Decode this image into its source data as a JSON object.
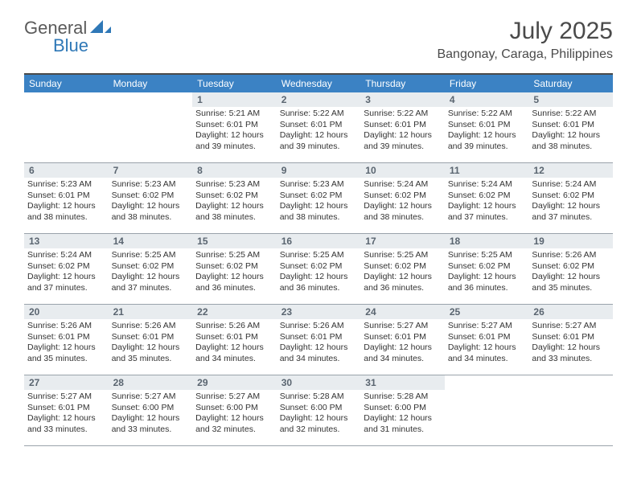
{
  "brand": {
    "part1": "General",
    "part2": "Blue"
  },
  "title": "July 2025",
  "location": "Bangonay, Caraga, Philippines",
  "colors": {
    "header_bar": "#3b82c4",
    "day_strip": "#e8ecef",
    "border": "#9aa3ab",
    "logo_blue": "#2f78b7",
    "text": "#333333"
  },
  "weekdays": [
    "Sunday",
    "Monday",
    "Tuesday",
    "Wednesday",
    "Thursday",
    "Friday",
    "Saturday"
  ],
  "first_weekday_index": 2,
  "days": [
    {
      "n": 1,
      "sunrise": "5:21 AM",
      "sunset": "6:01 PM",
      "daylight": "12 hours and 39 minutes."
    },
    {
      "n": 2,
      "sunrise": "5:22 AM",
      "sunset": "6:01 PM",
      "daylight": "12 hours and 39 minutes."
    },
    {
      "n": 3,
      "sunrise": "5:22 AM",
      "sunset": "6:01 PM",
      "daylight": "12 hours and 39 minutes."
    },
    {
      "n": 4,
      "sunrise": "5:22 AM",
      "sunset": "6:01 PM",
      "daylight": "12 hours and 39 minutes."
    },
    {
      "n": 5,
      "sunrise": "5:22 AM",
      "sunset": "6:01 PM",
      "daylight": "12 hours and 38 minutes."
    },
    {
      "n": 6,
      "sunrise": "5:23 AM",
      "sunset": "6:01 PM",
      "daylight": "12 hours and 38 minutes."
    },
    {
      "n": 7,
      "sunrise": "5:23 AM",
      "sunset": "6:02 PM",
      "daylight": "12 hours and 38 minutes."
    },
    {
      "n": 8,
      "sunrise": "5:23 AM",
      "sunset": "6:02 PM",
      "daylight": "12 hours and 38 minutes."
    },
    {
      "n": 9,
      "sunrise": "5:23 AM",
      "sunset": "6:02 PM",
      "daylight": "12 hours and 38 minutes."
    },
    {
      "n": 10,
      "sunrise": "5:24 AM",
      "sunset": "6:02 PM",
      "daylight": "12 hours and 38 minutes."
    },
    {
      "n": 11,
      "sunrise": "5:24 AM",
      "sunset": "6:02 PM",
      "daylight": "12 hours and 37 minutes."
    },
    {
      "n": 12,
      "sunrise": "5:24 AM",
      "sunset": "6:02 PM",
      "daylight": "12 hours and 37 minutes."
    },
    {
      "n": 13,
      "sunrise": "5:24 AM",
      "sunset": "6:02 PM",
      "daylight": "12 hours and 37 minutes."
    },
    {
      "n": 14,
      "sunrise": "5:25 AM",
      "sunset": "6:02 PM",
      "daylight": "12 hours and 37 minutes."
    },
    {
      "n": 15,
      "sunrise": "5:25 AM",
      "sunset": "6:02 PM",
      "daylight": "12 hours and 36 minutes."
    },
    {
      "n": 16,
      "sunrise": "5:25 AM",
      "sunset": "6:02 PM",
      "daylight": "12 hours and 36 minutes."
    },
    {
      "n": 17,
      "sunrise": "5:25 AM",
      "sunset": "6:02 PM",
      "daylight": "12 hours and 36 minutes."
    },
    {
      "n": 18,
      "sunrise": "5:25 AM",
      "sunset": "6:02 PM",
      "daylight": "12 hours and 36 minutes."
    },
    {
      "n": 19,
      "sunrise": "5:26 AM",
      "sunset": "6:02 PM",
      "daylight": "12 hours and 35 minutes."
    },
    {
      "n": 20,
      "sunrise": "5:26 AM",
      "sunset": "6:01 PM",
      "daylight": "12 hours and 35 minutes."
    },
    {
      "n": 21,
      "sunrise": "5:26 AM",
      "sunset": "6:01 PM",
      "daylight": "12 hours and 35 minutes."
    },
    {
      "n": 22,
      "sunrise": "5:26 AM",
      "sunset": "6:01 PM",
      "daylight": "12 hours and 34 minutes."
    },
    {
      "n": 23,
      "sunrise": "5:26 AM",
      "sunset": "6:01 PM",
      "daylight": "12 hours and 34 minutes."
    },
    {
      "n": 24,
      "sunrise": "5:27 AM",
      "sunset": "6:01 PM",
      "daylight": "12 hours and 34 minutes."
    },
    {
      "n": 25,
      "sunrise": "5:27 AM",
      "sunset": "6:01 PM",
      "daylight": "12 hours and 34 minutes."
    },
    {
      "n": 26,
      "sunrise": "5:27 AM",
      "sunset": "6:01 PM",
      "daylight": "12 hours and 33 minutes."
    },
    {
      "n": 27,
      "sunrise": "5:27 AM",
      "sunset": "6:01 PM",
      "daylight": "12 hours and 33 minutes."
    },
    {
      "n": 28,
      "sunrise": "5:27 AM",
      "sunset": "6:00 PM",
      "daylight": "12 hours and 33 minutes."
    },
    {
      "n": 29,
      "sunrise": "5:27 AM",
      "sunset": "6:00 PM",
      "daylight": "12 hours and 32 minutes."
    },
    {
      "n": 30,
      "sunrise": "5:28 AM",
      "sunset": "6:00 PM",
      "daylight": "12 hours and 32 minutes."
    },
    {
      "n": 31,
      "sunrise": "5:28 AM",
      "sunset": "6:00 PM",
      "daylight": "12 hours and 31 minutes."
    }
  ],
  "labels": {
    "sunrise": "Sunrise:",
    "sunset": "Sunset:",
    "daylight": "Daylight:"
  }
}
